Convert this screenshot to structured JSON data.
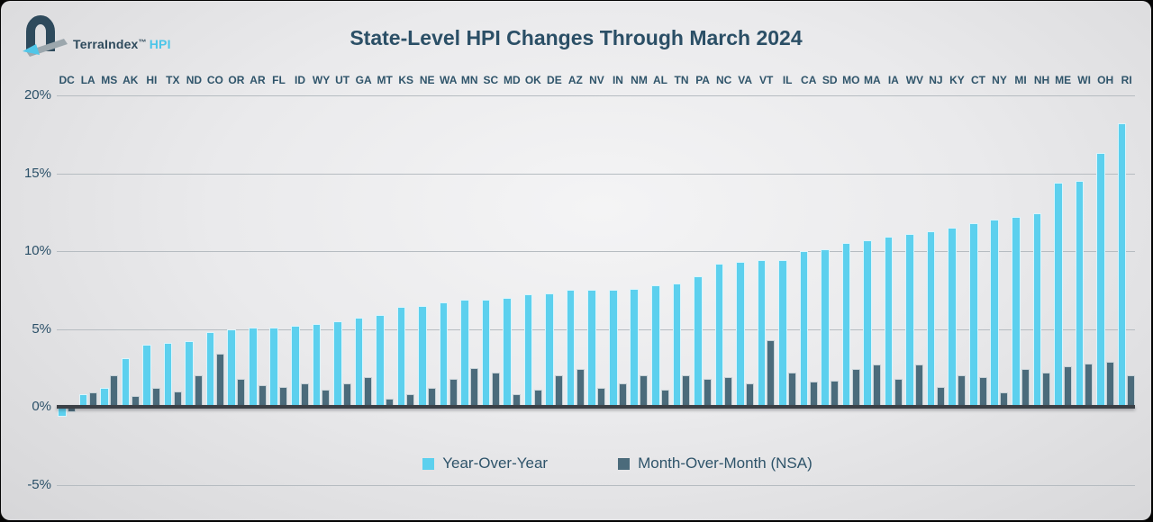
{
  "logo": {
    "brand": "TerraIndex",
    "tm": "™",
    "product": "HPI"
  },
  "title": "State-Level HPI Changes Through March 2024",
  "legend": {
    "items": [
      {
        "label": "Year-Over-Year",
        "color": "#5cd0ee"
      },
      {
        "label": "Month-Over-Month (NSA)",
        "color": "#4b6b7b"
      }
    ]
  },
  "colors": {
    "yoy_bar": "#5cd0ee",
    "mom_bar": "#4b6b7b",
    "title_text": "#2b4f66",
    "label_text": "#2f546a",
    "axis_line": "#3b4046",
    "gridline": "#b6bcc1",
    "logo_dark": "#2e4a5c",
    "logo_blue": "#50c6e8",
    "logo_gray": "#9ca7ad"
  },
  "chart_data": {
    "type": "bar",
    "title": "State-Level HPI Changes Through March 2024",
    "xlabel": "",
    "ylabel": "",
    "ylim": [
      -5,
      20
    ],
    "yticks": [
      20,
      15,
      10,
      5,
      0,
      -5
    ],
    "ytick_labels": [
      "20%",
      "15%",
      "10%",
      "5%",
      "0%",
      "-5%"
    ],
    "grid": true,
    "legend_position": "bottom",
    "categories": [
      "DC",
      "LA",
      "MS",
      "AK",
      "HI",
      "TX",
      "ND",
      "CO",
      "OR",
      "AR",
      "FL",
      "ID",
      "WY",
      "UT",
      "GA",
      "MT",
      "KS",
      "NE",
      "WA",
      "MN",
      "SC",
      "MD",
      "OK",
      "DE",
      "AZ",
      "NV",
      "IN",
      "NM",
      "AL",
      "TN",
      "PA",
      "NC",
      "VA",
      "VT",
      "IL",
      "CA",
      "SD",
      "MO",
      "MA",
      "IA",
      "WV",
      "NJ",
      "KY",
      "CT",
      "NY",
      "MI",
      "NH",
      "ME",
      "WI",
      "OH",
      "RI"
    ],
    "series": [
      {
        "name": "Year-Over-Year",
        "color": "#5cd0ee",
        "values": [
          -0.6,
          0.8,
          1.2,
          3.1,
          4.0,
          4.1,
          4.2,
          4.8,
          5.0,
          5.1,
          5.1,
          5.2,
          5.3,
          5.5,
          5.7,
          5.9,
          6.4,
          6.5,
          6.7,
          6.9,
          6.9,
          7.0,
          7.2,
          7.3,
          7.5,
          7.5,
          7.5,
          7.6,
          7.8,
          7.9,
          8.4,
          9.2,
          9.3,
          9.4,
          9.4,
          10.0,
          10.1,
          10.5,
          10.7,
          10.9,
          11.1,
          11.3,
          11.5,
          11.8,
          12.0,
          12.2,
          12.4,
          14.4,
          14.5,
          16.3,
          18.2
        ]
      },
      {
        "name": "Month-Over-Month (NSA)",
        "color": "#4b6b7b",
        "values": [
          -0.3,
          0.9,
          2.0,
          0.7,
          1.2,
          1.0,
          2.0,
          3.4,
          1.8,
          1.4,
          1.3,
          1.5,
          1.1,
          1.5,
          1.9,
          0.5,
          0.8,
          1.2,
          1.8,
          2.5,
          2.2,
          0.8,
          1.1,
          2.0,
          2.4,
          1.2,
          1.5,
          2.0,
          1.1,
          2.0,
          1.8,
          1.9,
          1.5,
          4.3,
          2.2,
          1.6,
          1.7,
          2.4,
          2.7,
          1.8,
          2.7,
          1.3,
          2.0,
          1.9,
          0.9,
          2.4,
          2.2,
          2.6,
          2.8,
          2.9,
          2.0
        ]
      }
    ]
  }
}
